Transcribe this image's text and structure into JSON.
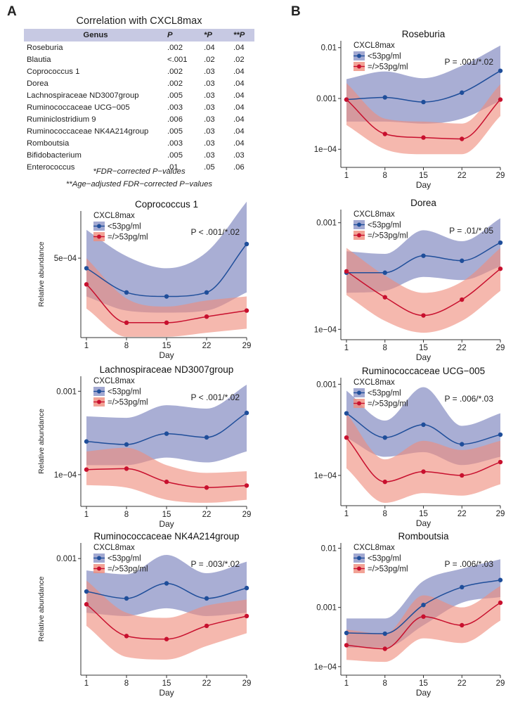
{
  "panel_labels": {
    "a": "A",
    "b": "B"
  },
  "table": {
    "title": "Correlation with CXCL8max",
    "headers": {
      "genus": "Genus",
      "p": "P",
      "fdr": "*P",
      "age": "**P"
    },
    "rows": [
      {
        "genus": "Roseburia",
        "p": ".002",
        "fdr": ".04",
        "age": ".04"
      },
      {
        "genus": "Blautia",
        "p": "<.001",
        "fdr": ".02",
        "age": ".02"
      },
      {
        "genus": "Coprococcus 1",
        "p": ".002",
        "fdr": ".03",
        "age": ".04"
      },
      {
        "genus": "Dorea",
        "p": ".002",
        "fdr": ".03",
        "age": ".04"
      },
      {
        "genus": "Lachnospiraceae ND3007group",
        "p": ".005",
        "fdr": ".03",
        "age": ".04"
      },
      {
        "genus": "Ruminococcaceae UCG−005",
        "p": ".003",
        "fdr": ".03",
        "age": ".04"
      },
      {
        "genus": "Ruminiclostridium 9",
        "p": ".006",
        "fdr": ".03",
        "age": ".04"
      },
      {
        "genus": "Ruminococcaceae NK4A214group",
        "p": ".005",
        "fdr": ".03",
        "age": ".04"
      },
      {
        "genus": "Romboutsia",
        "p": ".003",
        "fdr": ".03",
        "age": ".04"
      },
      {
        "genus": "Bifidobacterium",
        "p": ".005",
        "fdr": ".03",
        "age": ".03"
      },
      {
        "genus": "Enterococcus",
        "p": ".01",
        "fdr": ".05",
        "age": ".06"
      }
    ],
    "footnote1": "*FDR−corrected P−values",
    "footnote2": "**Age−adjusted FDR−corrected P−values"
  },
  "colors": {
    "low_line": "#1f4e9a",
    "low_band": "#8c93c6",
    "high_line": "#c8102e",
    "high_band": "#ef8c7c",
    "axis": "#333333",
    "header_bg": "#c7c9e3"
  },
  "chart_data": [
    {
      "type": "line",
      "title": "Coprococcus 1",
      "xlabel": "Day",
      "ylabel": "Relative abundance",
      "x": [
        1,
        8,
        15,
        22,
        29
      ],
      "xlim": [
        1,
        29
      ],
      "ylim": [
        0.00012,
        0.00072
      ],
      "yscale": "linear",
      "ytick_values": [
        0.0005
      ],
      "ytick_labels": [
        "5e−04"
      ],
      "show_ylabel": true,
      "legend_title": "CXCL8max",
      "pvalue": "P < .001/*.02",
      "series": [
        {
          "name": "<53pg/ml",
          "values": [
            0.00045,
            0.00033,
            0.00031,
            0.00033,
            0.00057
          ],
          "lower": [
            0.00031,
            0.00024,
            0.00023,
            0.00024,
            0.00033
          ],
          "upper": [
            0.00064,
            0.00051,
            0.00045,
            0.00053,
            0.00078
          ]
        },
        {
          "name": "=/>53pg/ml",
          "values": [
            0.00037,
            0.00018,
            0.00018,
            0.00021,
            0.00024
          ],
          "lower": [
            0.00025,
            0.00011,
            0.00011,
            0.00013,
            0.00015
          ],
          "upper": [
            0.0005,
            0.0003,
            0.00026,
            0.00029,
            0.00031
          ]
        }
      ]
    },
    {
      "type": "line",
      "title": "Lachnospiraceae ND3007group",
      "xlabel": "Day",
      "ylabel": "Relative abundance",
      "x": [
        1,
        8,
        15,
        22,
        29
      ],
      "xlim": [
        1,
        29
      ],
      "ylim": [
        4.5e-05,
        0.0014
      ],
      "yscale": "log",
      "ytick_values": [
        0.001,
        0.0001
      ],
      "ytick_labels": [
        "0.001",
        "1e−04"
      ],
      "show_ylabel": true,
      "legend_title": "CXCL8max",
      "pvalue": "P < .001/*.02",
      "series": [
        {
          "name": "<53pg/ml",
          "values": [
            0.00025,
            0.00023,
            0.00031,
            0.00028,
            0.00055
          ],
          "lower": [
            0.00013,
            0.00013,
            0.00016,
            0.00014,
            0.00019
          ],
          "upper": [
            0.0005,
            0.00048,
            0.00068,
            0.00062,
            0.0012
          ]
        },
        {
          "name": "=/>53pg/ml",
          "values": [
            0.000115,
            0.000118,
            8.2e-05,
            7e-05,
            7.4e-05
          ],
          "lower": [
            7.5e-05,
            7e-05,
            5e-05,
            4.6e-05,
            5e-05
          ],
          "upper": [
            0.00019,
            0.00021,
            0.00013,
            0.000105,
            0.00011
          ]
        }
      ]
    },
    {
      "type": "line",
      "title": "Ruminococcaceae NK4A214group",
      "xlabel": "Day",
      "ylabel": "Relative abundance",
      "x": [
        1,
        8,
        15,
        22,
        29
      ],
      "xlim": [
        1,
        29
      ],
      "ylim": [
        5e-05,
        0.0014
      ],
      "yscale": "log",
      "ytick_values": [
        0.001
      ],
      "ytick_labels": [
        "0.001"
      ],
      "show_ylabel": true,
      "legend_title": "CXCL8max",
      "pvalue": "P = .003/*.02",
      "series": [
        {
          "name": "<53pg/ml",
          "values": [
            0.00042,
            0.00035,
            0.00052,
            0.00035,
            0.00046
          ],
          "lower": [
            0.00024,
            0.00022,
            0.00027,
            0.00022,
            0.00024
          ],
          "upper": [
            0.00073,
            0.00066,
            0.0011,
            0.00068,
            0.00092
          ]
        },
        {
          "name": "=/>53pg/ml",
          "values": [
            0.0003,
            0.00013,
            0.00012,
            0.00017,
            0.00022
          ],
          "lower": [
            0.00017,
            7.5e-05,
            7e-05,
            0.0001,
            0.00014
          ],
          "upper": [
            0.00056,
            0.00024,
            0.00021,
            0.00029,
            0.00034
          ]
        }
      ]
    },
    {
      "type": "line",
      "title": "Roseburia",
      "xlabel": "Day",
      "ylabel": "",
      "x": [
        1,
        8,
        15,
        22,
        29
      ],
      "xlim": [
        1,
        29
      ],
      "ylim": [
        5e-05,
        0.012
      ],
      "yscale": "log",
      "ytick_values": [
        0.01,
        0.001,
        0.0001
      ],
      "ytick_labels": [
        "0.01",
        "0.001",
        "1e−04"
      ],
      "show_ylabel": false,
      "legend_title": "CXCL8max",
      "pvalue": "P = .001/*.02",
      "series": [
        {
          "name": "<53pg/ml",
          "values": [
            0.00095,
            0.00105,
            0.00085,
            0.0013,
            0.0035
          ],
          "lower": [
            0.00035,
            0.00035,
            0.00032,
            0.0004,
            0.0009
          ],
          "upper": [
            0.0024,
            0.0034,
            0.0025,
            0.0044,
            0.011
          ]
        },
        {
          "name": "=/>53pg/ml",
          "values": [
            0.00095,
            0.0002,
            0.00017,
            0.00016,
            0.00095
          ],
          "lower": [
            0.0003,
            0.0001,
            8e-05,
            8e-05,
            0.00045
          ],
          "upper": [
            0.002,
            0.0004,
            0.00035,
            0.00032,
            0.0019
          ]
        }
      ]
    },
    {
      "type": "line",
      "title": "Dorea",
      "xlabel": "Day",
      "ylabel": "",
      "x": [
        1,
        8,
        15,
        22,
        29
      ],
      "xlim": [
        1,
        29
      ],
      "ylim": [
        8.5e-05,
        0.00125
      ],
      "yscale": "log",
      "ytick_values": [
        0.001,
        0.0001
      ],
      "ytick_labels": [
        "0.001",
        "1e−04"
      ],
      "show_ylabel": false,
      "legend_title": "CXCL8max",
      "pvalue": "P = .01/*.05",
      "series": [
        {
          "name": "<53pg/ml",
          "values": [
            0.00034,
            0.00034,
            0.00049,
            0.00044,
            0.00065
          ],
          "lower": [
            0.00022,
            0.00023,
            0.00031,
            0.00029,
            0.00039
          ],
          "upper": [
            0.00054,
            0.00051,
            0.00085,
            0.00067,
            0.0011
          ]
        },
        {
          "name": "=/>53pg/ml",
          "values": [
            0.00035,
            0.0002,
            0.000135,
            0.00019,
            0.00037
          ],
          "lower": [
            0.00021,
            0.00012,
            9.3e-05,
            0.00012,
            0.00023
          ],
          "upper": [
            0.00058,
            0.00032,
            0.00022,
            0.00028,
            0.00058
          ]
        }
      ]
    },
    {
      "type": "line",
      "title": "Ruminococcaceae UCG−005",
      "xlabel": "Day",
      "ylabel": "",
      "x": [
        1,
        8,
        15,
        22,
        29
      ],
      "xlim": [
        1,
        29
      ],
      "ylim": [
        5e-05,
        0.0011
      ],
      "yscale": "log",
      "ytick_values": [
        0.001,
        0.0001
      ],
      "ytick_labels": [
        "0.001",
        "1e−04"
      ],
      "show_ylabel": false,
      "legend_title": "CXCL8max",
      "pvalue": "P = .006/*.03",
      "series": [
        {
          "name": "<53pg/ml",
          "values": [
            0.00048,
            0.00026,
            0.00036,
            0.00022,
            0.00028
          ],
          "lower": [
            0.00026,
            0.00016,
            0.00018,
            0.00013,
            0.00016
          ],
          "upper": [
            0.00085,
            0.0004,
            0.00093,
            0.00035,
            0.00048
          ]
        },
        {
          "name": "=/>53pg/ml",
          "values": [
            0.00026,
            8.5e-05,
            0.00011,
            0.0001,
            0.00014
          ],
          "lower": [
            0.00012,
            5e-05,
            6.4e-05,
            6e-05,
            8e-05
          ],
          "upper": [
            0.00048,
            0.00015,
            0.00024,
            0.00019,
            0.00024
          ]
        }
      ]
    },
    {
      "type": "line",
      "title": "Romboutsia",
      "xlabel": "Day",
      "ylabel": "",
      "x": [
        1,
        8,
        15,
        22,
        29
      ],
      "xlim": [
        1,
        29
      ],
      "ylim": [
        8e-05,
        0.011
      ],
      "yscale": "log",
      "ytick_values": [
        0.01,
        0.001,
        0.0001
      ],
      "ytick_labels": [
        "0.01",
        "0.001",
        "1e−04"
      ],
      "show_ylabel": false,
      "legend_title": "CXCL8max",
      "pvalue": "P = .006/*.03",
      "series": [
        {
          "name": "<53pg/ml",
          "values": [
            0.00037,
            0.00036,
            0.0011,
            0.0022,
            0.0029
          ],
          "lower": [
            0.00021,
            0.00021,
            0.0005,
            0.0012,
            0.0015
          ],
          "upper": [
            0.00065,
            0.00065,
            0.0028,
            0.0045,
            0.0065
          ]
        },
        {
          "name": "=/>53pg/ml",
          "values": [
            0.00023,
            0.0002,
            0.0007,
            0.0005,
            0.0012
          ],
          "lower": [
            0.00013,
            0.00012,
            0.0003,
            0.00025,
            0.0006
          ],
          "upper": [
            0.00042,
            0.00036,
            0.0016,
            0.001,
            0.0023
          ]
        }
      ]
    }
  ]
}
